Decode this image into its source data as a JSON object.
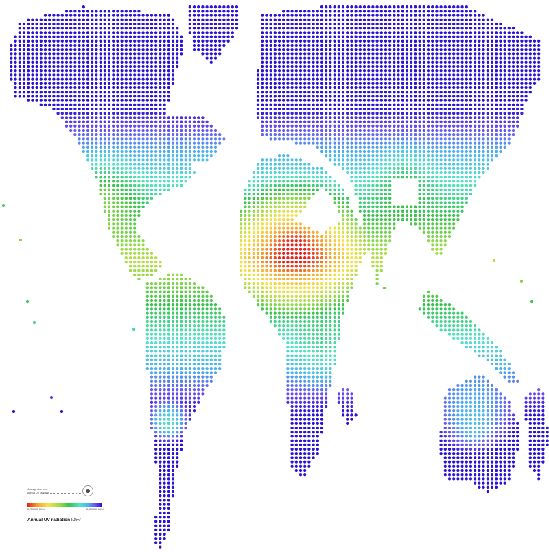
{
  "legend": {
    "skin_label": "Average skin color",
    "uv_label": "Annual UV radiation",
    "min_value": "2,250,000 kJ/m²",
    "max_value": "6,500,000 kJ/m²",
    "title": "Annual UV radiation",
    "unit": "kJ/m²"
  },
  "colors": {
    "low": "#e8201c",
    "mid": "#8fda48",
    "high": "#2a12d8",
    "background": "#ffffff"
  }
}
